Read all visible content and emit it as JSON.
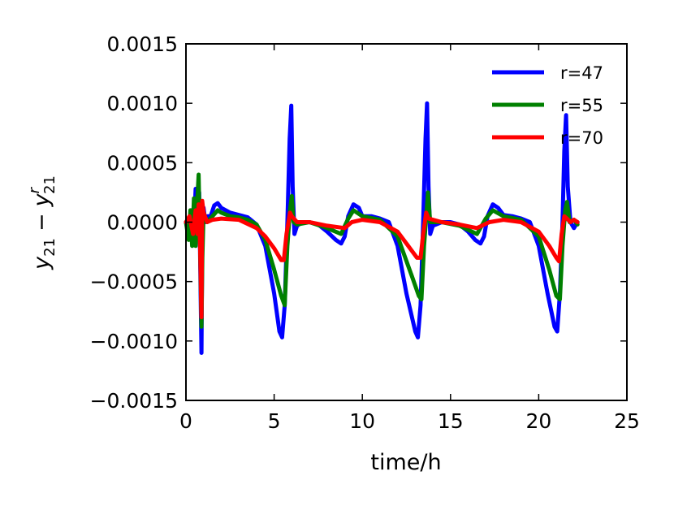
{
  "chart_data": {
    "type": "line",
    "title": "",
    "xlabel": "time/h",
    "ylabel_main": "y",
    "ylabel_main_sub": "21",
    "ylabel_minus": "−",
    "ylabel_ref": "y",
    "ylabel_ref_sup": "r",
    "ylabel_ref_sub": "21",
    "xlim": [
      0,
      25
    ],
    "ylim": [
      -0.0015,
      0.0015
    ],
    "xticks": [
      0,
      5,
      10,
      15,
      20,
      25
    ],
    "xtick_labels": [
      "0",
      "5",
      "10",
      "15",
      "20",
      "25"
    ],
    "yticks": [
      0.0015,
      0.001,
      0.0005,
      0.0,
      -0.0005,
      -0.001,
      -0.0015
    ],
    "ytick_labels": [
      "0.0015",
      "0.0010",
      "0.0005",
      "0.0000",
      "−0.0005",
      "−0.0010",
      "−0.0015"
    ],
    "grid": false,
    "legend_position": "top-right",
    "series": [
      {
        "name": "r=47",
        "color": "#0000ff",
        "points": [
          [
            0.0,
            0.0
          ],
          [
            0.15,
            -0.00012
          ],
          [
            0.3,
            0.0001
          ],
          [
            0.4,
            -0.0001
          ],
          [
            0.5,
            0.00012
          ],
          [
            0.55,
            0.00028
          ],
          [
            0.65,
            0.0
          ],
          [
            0.75,
            0.00025
          ],
          [
            0.85,
            -0.0008
          ],
          [
            0.88,
            -0.0011
          ],
          [
            0.92,
            -0.0002
          ],
          [
            1.0,
            0.00012
          ],
          [
            1.1,
            0.0
          ],
          [
            1.2,
            5e-05
          ],
          [
            1.4,
            5e-05
          ],
          [
            1.6,
            0.00014
          ],
          [
            1.8,
            0.00016
          ],
          [
            2.0,
            0.00012
          ],
          [
            2.5,
            8e-05
          ],
          [
            3.0,
            6e-05
          ],
          [
            3.5,
            4e-05
          ],
          [
            4.0,
            -2e-05
          ],
          [
            4.5,
            -0.0002
          ],
          [
            5.0,
            -0.0006
          ],
          [
            5.3,
            -0.00092
          ],
          [
            5.45,
            -0.00097
          ],
          [
            5.6,
            -0.0007
          ],
          [
            5.75,
            0.0
          ],
          [
            5.88,
            0.0007
          ],
          [
            5.97,
            0.00098
          ],
          [
            6.05,
            0.0003
          ],
          [
            6.15,
            -0.0001
          ],
          [
            6.3,
            -3e-05
          ],
          [
            6.6,
            0.0
          ],
          [
            7.0,
            0.0
          ],
          [
            7.5,
            -2e-05
          ],
          [
            8.0,
            -8e-05
          ],
          [
            8.5,
            -0.00015
          ],
          [
            8.8,
            -0.00018
          ],
          [
            9.0,
            -0.00012
          ],
          [
            9.2,
            5e-05
          ],
          [
            9.5,
            0.00015
          ],
          [
            9.8,
            0.00012
          ],
          [
            10.0,
            5e-05
          ],
          [
            10.5,
            5e-05
          ],
          [
            11.0,
            3e-05
          ],
          [
            11.5,
            0.0
          ],
          [
            12.0,
            -0.0002
          ],
          [
            12.5,
            -0.0006
          ],
          [
            13.0,
            -0.00092
          ],
          [
            13.15,
            -0.00097
          ],
          [
            13.3,
            -0.0007
          ],
          [
            13.45,
            0.0
          ],
          [
            13.58,
            0.0007
          ],
          [
            13.67,
            0.001
          ],
          [
            13.75,
            0.0003
          ],
          [
            13.85,
            -0.0001
          ],
          [
            14.0,
            -3e-05
          ],
          [
            14.5,
            0.0
          ],
          [
            15.0,
            0.0
          ],
          [
            15.5,
            -2e-05
          ],
          [
            16.0,
            -8e-05
          ],
          [
            16.4,
            -0.00015
          ],
          [
            16.7,
            -0.00018
          ],
          [
            16.9,
            -0.00012
          ],
          [
            17.1,
            5e-05
          ],
          [
            17.4,
            0.00015
          ],
          [
            17.7,
            0.00012
          ],
          [
            18.0,
            6e-05
          ],
          [
            18.5,
            5e-05
          ],
          [
            19.0,
            3e-05
          ],
          [
            19.5,
            0.0
          ],
          [
            20.0,
            -0.0002
          ],
          [
            20.5,
            -0.0006
          ],
          [
            20.9,
            -0.00088
          ],
          [
            21.05,
            -0.00092
          ],
          [
            21.2,
            -0.0006
          ],
          [
            21.35,
            0.0
          ],
          [
            21.45,
            0.0006
          ],
          [
            21.55,
            0.0009
          ],
          [
            21.65,
            0.0003
          ],
          [
            21.8,
            0.0
          ],
          [
            22.0,
            -5e-05
          ],
          [
            22.2,
            0.0
          ]
        ]
      },
      {
        "name": "r=55",
        "color": "#008000",
        "points": [
          [
            0.0,
            0.0
          ],
          [
            0.15,
            -0.00015
          ],
          [
            0.25,
            0.0001
          ],
          [
            0.35,
            -0.0002
          ],
          [
            0.45,
            0.0002
          ],
          [
            0.55,
            -0.0002
          ],
          [
            0.65,
            0.0002
          ],
          [
            0.72,
            0.0004
          ],
          [
            0.8,
            -0.0002
          ],
          [
            0.88,
            -0.00088
          ],
          [
            0.93,
            -0.0003
          ],
          [
            1.0,
            8e-05
          ],
          [
            1.2,
            0.0
          ],
          [
            1.5,
            5e-05
          ],
          [
            1.8,
            0.0001
          ],
          [
            2.0,
            8e-05
          ],
          [
            2.5,
            5e-05
          ],
          [
            3.0,
            4e-05
          ],
          [
            3.5,
            2e-05
          ],
          [
            4.0,
            -2e-05
          ],
          [
            4.5,
            -0.00015
          ],
          [
            5.0,
            -0.0004
          ],
          [
            5.4,
            -0.00062
          ],
          [
            5.6,
            -0.0007
          ],
          [
            5.75,
            -0.0002
          ],
          [
            5.9,
            0.0001
          ],
          [
            6.0,
            0.00022
          ],
          [
            6.1,
            0.0
          ],
          [
            6.3,
            -2e-05
          ],
          [
            7.0,
            0.0
          ],
          [
            8.0,
            -5e-05
          ],
          [
            8.8,
            -0.0001
          ],
          [
            9.2,
            3e-05
          ],
          [
            9.5,
            0.0001
          ],
          [
            10.0,
            5e-05
          ],
          [
            11.0,
            2e-05
          ],
          [
            12.0,
            -0.00012
          ],
          [
            12.8,
            -0.00045
          ],
          [
            13.2,
            -0.00062
          ],
          [
            13.35,
            -0.00065
          ],
          [
            13.5,
            -0.0002
          ],
          [
            13.65,
            0.0001
          ],
          [
            13.72,
            0.00025
          ],
          [
            13.85,
            0.0
          ],
          [
            14.5,
            0.0
          ],
          [
            15.5,
            -3e-05
          ],
          [
            16.5,
            -0.0001
          ],
          [
            17.0,
            3e-05
          ],
          [
            17.4,
            0.0001
          ],
          [
            18.0,
            5e-05
          ],
          [
            19.0,
            2e-05
          ],
          [
            20.0,
            -0.00012
          ],
          [
            20.6,
            -0.0004
          ],
          [
            21.0,
            -0.00062
          ],
          [
            21.2,
            -0.00065
          ],
          [
            21.35,
            -0.0002
          ],
          [
            21.5,
            0.0001
          ],
          [
            21.6,
            0.00017
          ],
          [
            21.75,
            0.0
          ],
          [
            22.0,
            2e-05
          ],
          [
            22.2,
            -2e-05
          ]
        ]
      },
      {
        "name": "r=70",
        "color": "#ff0000",
        "points": [
          [
            0.0,
            0.0
          ],
          [
            0.2,
            5e-05
          ],
          [
            0.4,
            -0.0001
          ],
          [
            0.55,
            0.0001
          ],
          [
            0.65,
            -0.0001
          ],
          [
            0.72,
            0.00015
          ],
          [
            0.8,
            -0.0002
          ],
          [
            0.88,
            -0.0008
          ],
          [
            0.92,
            0.00018
          ],
          [
            1.0,
            8e-05
          ],
          [
            1.2,
            0.0
          ],
          [
            1.5,
            2e-05
          ],
          [
            2.0,
            3e-05
          ],
          [
            3.0,
            2e-05
          ],
          [
            4.0,
            -5e-05
          ],
          [
            4.5,
            -0.00012
          ],
          [
            5.0,
            -0.00022
          ],
          [
            5.4,
            -0.00032
          ],
          [
            5.55,
            -0.00032
          ],
          [
            5.7,
            -0.0001
          ],
          [
            5.9,
            8e-05
          ],
          [
            6.0,
            5e-05
          ],
          [
            6.3,
            0.0
          ],
          [
            7.0,
            0.0
          ],
          [
            8.0,
            -3e-05
          ],
          [
            9.0,
            -5e-05
          ],
          [
            9.4,
            0.0
          ],
          [
            10.0,
            2e-05
          ],
          [
            11.0,
            0.0
          ],
          [
            12.0,
            -8e-05
          ],
          [
            12.6,
            -0.0002
          ],
          [
            13.1,
            -0.0003
          ],
          [
            13.3,
            -0.0003
          ],
          [
            13.45,
            -0.0001
          ],
          [
            13.62,
            8e-05
          ],
          [
            13.75,
            3e-05
          ],
          [
            14.5,
            0.0
          ],
          [
            15.5,
            -2e-05
          ],
          [
            16.5,
            -5e-05
          ],
          [
            17.2,
            0.0
          ],
          [
            18.0,
            2e-05
          ],
          [
            19.0,
            0.0
          ],
          [
            20.0,
            -8e-05
          ],
          [
            20.6,
            -0.0002
          ],
          [
            21.0,
            -0.0003
          ],
          [
            21.15,
            -0.00033
          ],
          [
            21.3,
            -0.0001
          ],
          [
            21.45,
            5e-05
          ],
          [
            21.6,
            3e-05
          ],
          [
            21.8,
            0.0
          ],
          [
            22.0,
            2e-05
          ],
          [
            22.2,
            0.0
          ]
        ]
      }
    ]
  }
}
